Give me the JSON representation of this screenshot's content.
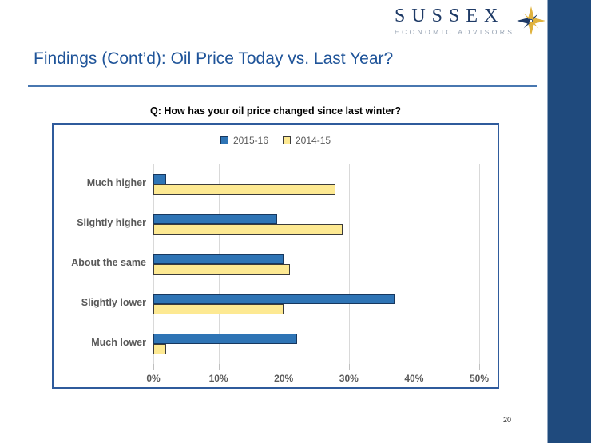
{
  "logo": {
    "name": "SUSSEX",
    "subtitle": "ECONOMIC ADVISORS"
  },
  "slide": {
    "title": "Findings (Cont’d): Oil Price Today vs. Last Year?",
    "page_number": "20"
  },
  "colors": {
    "title_blue": "#1F5499",
    "rule_blue": "#4877B0",
    "sidebar_navy": "#1F4A7D",
    "chart_border_blue": "#2F5B9C",
    "gridline_gray": "#D9D9D9",
    "label_gray": "#595959",
    "logo_navy": "#1E3A66",
    "logo_gold": "#E0B23C"
  },
  "chart_data": {
    "type": "bar",
    "orientation": "horizontal",
    "title": "Q: How has your oil price changed since last winter?",
    "categories": [
      "Much higher",
      "Slightly higher",
      "About the same",
      "Slightly lower",
      "Much lower"
    ],
    "series": [
      {
        "name": "2015-16",
        "color": "#2E74B5",
        "border": "#17375E",
        "values": [
          2,
          19,
          20,
          37,
          22
        ]
      },
      {
        "name": "2014-15",
        "color": "#FDE992",
        "border": "#3B3B3B",
        "values": [
          28,
          29,
          21,
          20,
          2
        ]
      }
    ],
    "x_ticks": [
      "0%",
      "10%",
      "20%",
      "30%",
      "40%",
      "50%"
    ],
    "xlim": [
      0,
      50
    ],
    "xlabel": "",
    "ylabel": "",
    "grid": true,
    "legend_position": "top"
  }
}
